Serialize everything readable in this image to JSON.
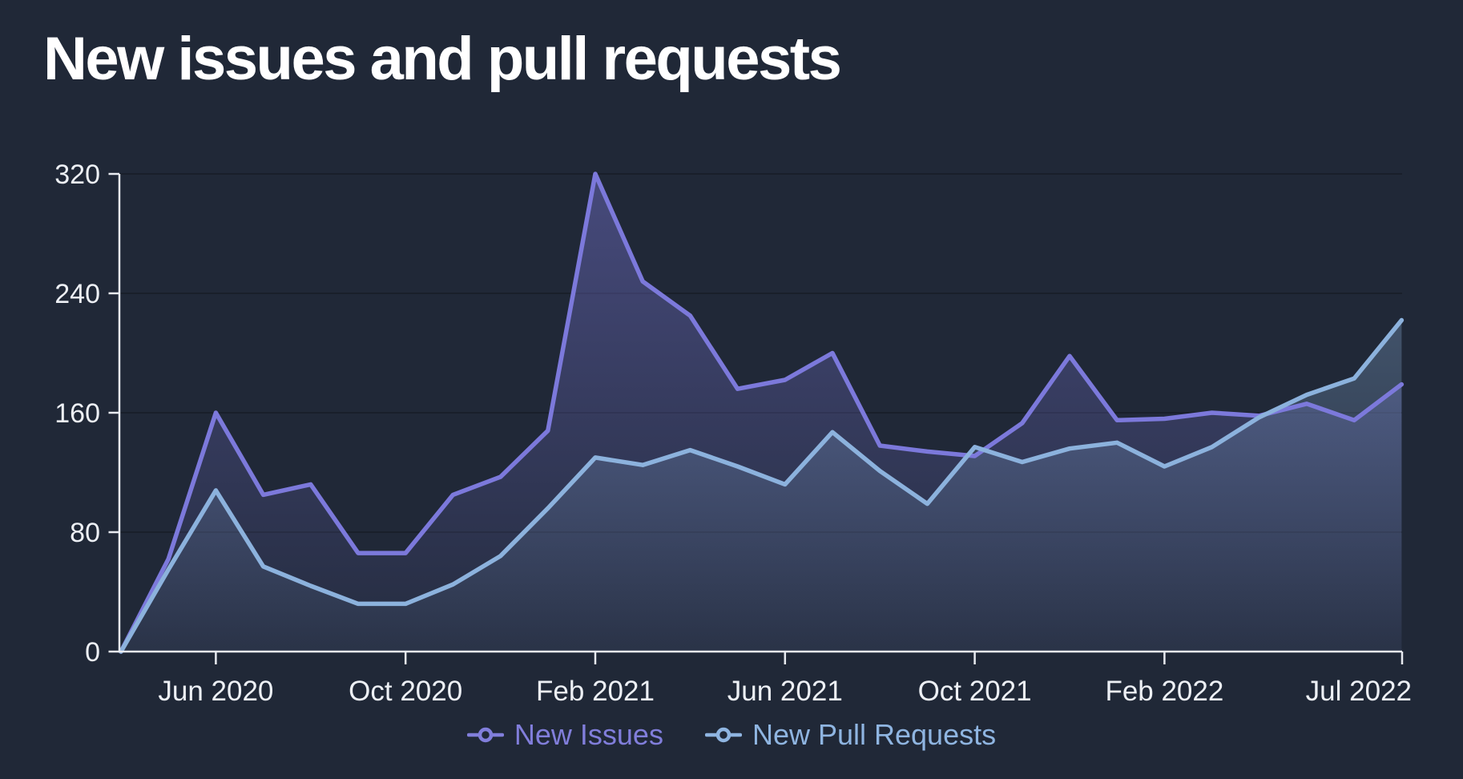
{
  "page": {
    "background": "#202837",
    "grid_color": "rgba(0,0,0,0.22)",
    "axis_color": "#E8EBF1",
    "tick_label_color": "#EDF0F5"
  },
  "header": {
    "title": "New issues and pull requests"
  },
  "legend": {
    "items": [
      {
        "label": "New Issues",
        "color": "#817EDB"
      },
      {
        "label": "New Pull Requests",
        "color": "#8FB5E1"
      }
    ]
  },
  "chart_data": {
    "type": "line",
    "title": "New issues and pull requests",
    "xlabel": "",
    "ylabel": "",
    "x": [
      "Apr 2020",
      "May 2020",
      "Jun 2020",
      "Jul 2020",
      "Aug 2020",
      "Sep 2020",
      "Oct 2020",
      "Nov 2020",
      "Dec 2020",
      "Jan 2021",
      "Feb 2021",
      "Mar 2021",
      "Apr 2021",
      "May 2021",
      "Jun 2021",
      "Jul 2021",
      "Aug 2021",
      "Sep 2021",
      "Oct 2021",
      "Nov 2021",
      "Dec 2021",
      "Jan 2022",
      "Feb 2022",
      "Mar 2022",
      "Apr 2022",
      "May 2022",
      "Jun 2022",
      "Jul 2022"
    ],
    "series": [
      {
        "name": "New Issues",
        "color": "#7C79DB",
        "values": [
          0,
          62,
          160,
          105,
          112,
          66,
          66,
          105,
          117,
          148,
          320,
          248,
          225,
          176,
          182,
          200,
          138,
          134,
          131,
          153,
          198,
          155,
          156,
          160,
          158,
          166,
          155,
          179
        ]
      },
      {
        "name": "New Pull Requests",
        "color": "#8CB2DD",
        "values": [
          0,
          55,
          108,
          57,
          44,
          32,
          32,
          45,
          64,
          96,
          130,
          125,
          135,
          124,
          112,
          147,
          121,
          99,
          137,
          127,
          136,
          140,
          124,
          137,
          157,
          172,
          183,
          222
        ]
      }
    ],
    "ylim": [
      0,
      320
    ],
    "yticks": [
      0,
      80,
      160,
      240,
      320
    ],
    "xticks": [
      "Jun 2020",
      "Oct 2020",
      "Feb 2021",
      "Jun 2021",
      "Oct 2021",
      "Feb 2022",
      "Jul 2022"
    ],
    "grid": "horizontal",
    "legend_position": "bottom",
    "area_fill": true
  }
}
